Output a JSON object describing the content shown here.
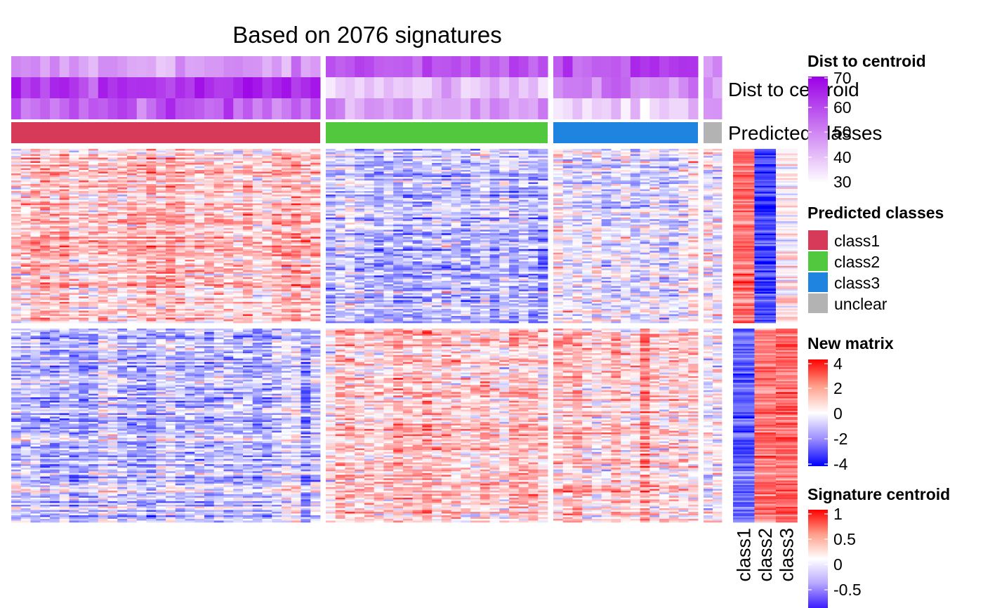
{
  "chart_data": {
    "type": "heatmap",
    "title": "Based on 2076 signatures",
    "row_annotation_labels": [
      "Dist to centroid",
      "Predicted classes"
    ],
    "column_groups": [
      {
        "class": "class1",
        "n_samples": 32
      },
      {
        "class": "class2",
        "n_samples": 23
      },
      {
        "class": "class3",
        "n_samples": 15
      },
      {
        "class": "unclear",
        "n_samples": 2
      }
    ],
    "row_groups": [
      "group1",
      "group2"
    ],
    "signature_centroid_columns": [
      "class1",
      "class2",
      "class3"
    ],
    "signature_centroid_values": {
      "group1": {
        "class1": 0.55,
        "class2": -0.75,
        "class3": 0.05
      },
      "group2": {
        "class1": -0.6,
        "class2": 0.55,
        "class3": 0.6
      }
    },
    "legends": {
      "dist_to_centroid": {
        "title": "Dist to centroid",
        "ticks": [
          "70",
          "60",
          "50",
          "40",
          "30"
        ],
        "range": [
          30,
          70
        ],
        "colors": [
          "#ffffff",
          "#9b00e6"
        ]
      },
      "predicted_classes": {
        "title": "Predicted classes",
        "items": [
          {
            "label": "class1",
            "color": "#d63a58"
          },
          {
            "label": "class2",
            "color": "#52c83f"
          },
          {
            "label": "class3",
            "color": "#1f84e0"
          },
          {
            "label": "unclear",
            "color": "#b3b3b3"
          }
        ]
      },
      "new_matrix": {
        "title": "New matrix",
        "ticks": [
          "4",
          "2",
          "0",
          "-2",
          "-4"
        ],
        "range": [
          -4,
          4
        ],
        "colors": [
          "#0000ff",
          "#ffffff",
          "#ff0000"
        ]
      },
      "signature_centroid": {
        "title": "Signature centroid",
        "ticks": [
          "1",
          "0.5",
          "0",
          "-0.5"
        ],
        "range": [
          -1,
          1
        ],
        "colors": [
          "#0000ff",
          "#ffffff",
          "#ff0000"
        ]
      }
    }
  }
}
